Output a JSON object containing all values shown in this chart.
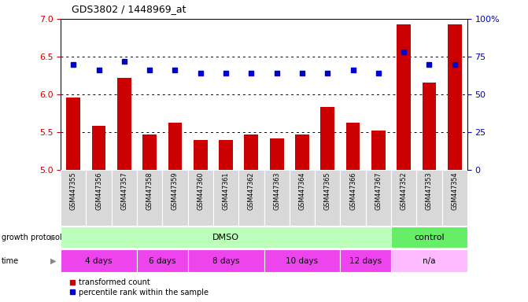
{
  "title": "GDS3802 / 1448969_at",
  "samples": [
    "GSM447355",
    "GSM447356",
    "GSM447357",
    "GSM447358",
    "GSM447359",
    "GSM447360",
    "GSM447361",
    "GSM447362",
    "GSM447363",
    "GSM447364",
    "GSM447365",
    "GSM447366",
    "GSM447367",
    "GSM447352",
    "GSM447353",
    "GSM447354"
  ],
  "transformed_count": [
    5.96,
    5.59,
    6.22,
    5.47,
    5.63,
    5.4,
    5.4,
    5.47,
    5.42,
    5.47,
    5.84,
    5.63,
    5.52,
    6.93,
    6.16,
    6.93
  ],
  "percentile_rank": [
    70,
    66,
    72,
    66,
    66,
    64,
    64,
    64,
    64,
    64,
    64,
    66,
    64,
    78,
    70,
    70
  ],
  "ylim_left": [
    5.0,
    7.0
  ],
  "ylim_right": [
    0,
    100
  ],
  "yticks_left": [
    5.0,
    5.5,
    6.0,
    6.5,
    7.0
  ],
  "yticks_right": [
    0,
    25,
    50,
    75,
    100
  ],
  "bar_color": "#cc0000",
  "dot_color": "#0000cc",
  "growth_protocol_groups": [
    {
      "label": "DMSO",
      "start": 0,
      "end": 12,
      "color": "#bbffbb"
    },
    {
      "label": "control",
      "start": 13,
      "end": 15,
      "color": "#66ee66"
    }
  ],
  "time_groups": [
    {
      "label": "4 days",
      "start": 0,
      "end": 2,
      "color": "#ee44ee"
    },
    {
      "label": "6 days",
      "start": 3,
      "end": 4,
      "color": "#ee44ee"
    },
    {
      "label": "8 days",
      "start": 5,
      "end": 7,
      "color": "#ee44ee"
    },
    {
      "label": "10 days",
      "start": 8,
      "end": 10,
      "color": "#ee44ee"
    },
    {
      "label": "12 days",
      "start": 11,
      "end": 12,
      "color": "#ee44ee"
    },
    {
      "label": "n/a",
      "start": 13,
      "end": 15,
      "color": "#ffbbff"
    }
  ],
  "legend_items": [
    {
      "label": "transformed count",
      "color": "#cc0000"
    },
    {
      "label": "percentile rank within the sample",
      "color": "#0000cc"
    }
  ],
  "dotted_lines": [
    5.5,
    6.0,
    6.5
  ],
  "label_bg_color": "#d8d8d8",
  "label_divider_color": "#ffffff"
}
